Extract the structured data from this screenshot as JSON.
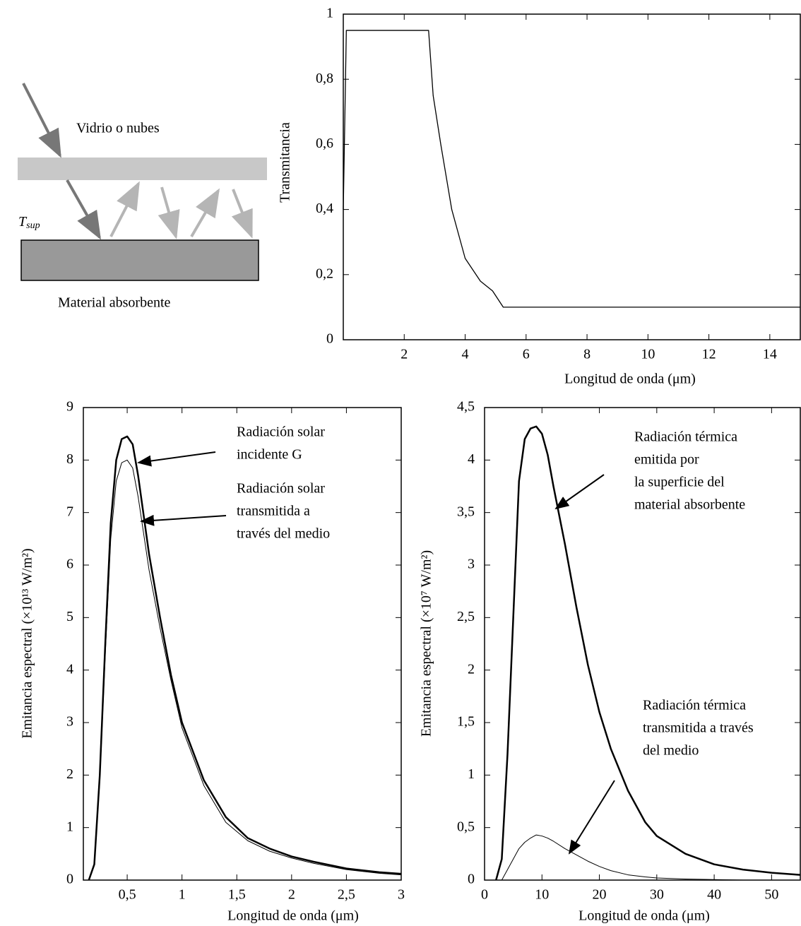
{
  "diagram": {
    "glass_label": "Vidrio o nubes",
    "temperature_label": "T",
    "temperature_subscript": "sup",
    "material_label": "Material absorbente"
  },
  "chart_data": [
    {
      "type": "line",
      "ylabel": "Transmitancia",
      "xlabel": "Longitud de onda (μm)",
      "x": [
        0,
        0.1,
        0.25,
        2.8,
        2.95,
        3.2,
        3.56,
        4.0,
        4.5,
        4.9,
        5.25,
        15
      ],
      "values": [
        0.4,
        0.95,
        0.95,
        0.95,
        0.75,
        0.6,
        0.4,
        0.25,
        0.18,
        0.15,
        0.1,
        0.1
      ],
      "color": "#000000",
      "xlim": [
        0,
        15
      ],
      "xticks": [
        2,
        4,
        6,
        8,
        10,
        12,
        14
      ],
      "ylim": [
        0,
        1
      ],
      "yticks": [
        0,
        {
          "value": 0.2,
          "label": "0,2"
        },
        {
          "value": 0.4,
          "label": "0,4"
        },
        {
          "value": 0.6,
          "label": "0,6"
        },
        {
          "value": 0.8,
          "label": "0,8"
        },
        1
      ]
    },
    {
      "type": "line",
      "ylabel": "Emitancia espectral (×10¹³ W/m²)",
      "xlabel": "Longitud de onda (μm)",
      "series": [
        {
          "color": "#000000",
          "x": [
            0.15,
            0.2,
            0.25,
            0.3,
            0.35,
            0.4,
            0.45,
            0.5,
            0.55,
            0.6,
            0.7,
            0.8,
            0.9,
            1.0,
            1.2,
            1.4,
            1.6,
            1.8,
            2.0,
            2.2,
            2.5,
            2.8,
            3.0
          ],
          "values": [
            0,
            0.3,
            2,
            4.5,
            6.8,
            8.0,
            8.4,
            8.45,
            8.3,
            7.7,
            6.2,
            5.0,
            3.9,
            3.0,
            1.9,
            1.2,
            0.8,
            0.6,
            0.45,
            0.35,
            0.22,
            0.15,
            0.12
          ]
        },
        {
          "color": "#000000",
          "x": [
            0.15,
            0.2,
            0.25,
            0.3,
            0.35,
            0.4,
            0.45,
            0.5,
            0.55,
            0.6,
            0.7,
            0.8,
            0.9,
            1.0,
            1.2,
            1.4,
            1.6,
            1.8,
            2.0,
            2.2,
            2.5,
            2.8,
            3.0
          ],
          "values": [
            0,
            0.28,
            1.9,
            4.3,
            6.5,
            7.6,
            7.95,
            8.0,
            7.85,
            7.3,
            5.9,
            4.8,
            3.8,
            2.9,
            1.8,
            1.1,
            0.75,
            0.55,
            0.42,
            0.32,
            0.2,
            0.13,
            0.1
          ]
        }
      ],
      "annotations": [
        {
          "lines": [
            "Radiación solar",
            "incidente G"
          ]
        },
        {
          "lines": [
            "Radiación solar",
            "transmitida a",
            "través del medio"
          ]
        }
      ],
      "xlim": [
        0.1,
        3
      ],
      "xticks": [
        {
          "value": 0.5,
          "label": "0,5"
        },
        1,
        {
          "value": 1.5,
          "label": "1,5"
        },
        2,
        {
          "value": 2.5,
          "label": "2,5"
        },
        3
      ],
      "ylim": [
        0,
        9
      ],
      "yticks": [
        0,
        1,
        2,
        3,
        4,
        5,
        6,
        7,
        8,
        9
      ]
    },
    {
      "type": "line",
      "ylabel": "Emitancia espectral (×10⁷ W/m²)",
      "xlabel": "Longitud de onda (μm)",
      "series": [
        {
          "color": "#000000",
          "x": [
            2,
            3,
            4,
            5,
            6,
            7,
            8,
            9,
            10,
            11,
            12,
            14,
            16,
            18,
            20,
            22,
            25,
            28,
            30,
            35,
            40,
            45,
            50,
            55
          ],
          "values": [
            0,
            0.2,
            1.2,
            2.5,
            3.8,
            4.2,
            4.3,
            4.32,
            4.25,
            4.05,
            3.75,
            3.2,
            2.6,
            2.05,
            1.6,
            1.25,
            0.85,
            0.55,
            0.42,
            0.25,
            0.15,
            0.1,
            0.07,
            0.05
          ]
        },
        {
          "color": "#000000",
          "x": [
            3,
            4,
            5,
            6,
            7,
            8,
            9,
            10,
            11,
            12,
            14,
            16,
            18,
            20,
            22,
            25,
            28,
            30,
            35,
            45
          ],
          "values": [
            0,
            0.1,
            0.2,
            0.3,
            0.36,
            0.4,
            0.43,
            0.42,
            0.4,
            0.37,
            0.3,
            0.24,
            0.18,
            0.13,
            0.09,
            0.05,
            0.03,
            0.02,
            0.01,
            0
          ]
        }
      ],
      "annotations": [
        {
          "lines": [
            "Radiación térmica",
            "emitida por",
            "la superficie del",
            "material absorbente"
          ]
        },
        {
          "lines": [
            "Radiación térmica",
            "transmitida a través",
            "del medio"
          ]
        }
      ],
      "xlim": [
        0,
        55
      ],
      "xticks": [
        0,
        10,
        20,
        30,
        40,
        50
      ],
      "ylim": [
        0,
        4.5
      ],
      "yticks": [
        0,
        {
          "value": 0.5,
          "label": "0,5"
        },
        1,
        {
          "value": 1.5,
          "label": "1,5"
        },
        2,
        {
          "value": 2.5,
          "label": "2,5"
        },
        3,
        {
          "value": 3.5,
          "label": "3,5"
        },
        4,
        {
          "value": 4.5,
          "label": "4,5"
        }
      ]
    }
  ]
}
